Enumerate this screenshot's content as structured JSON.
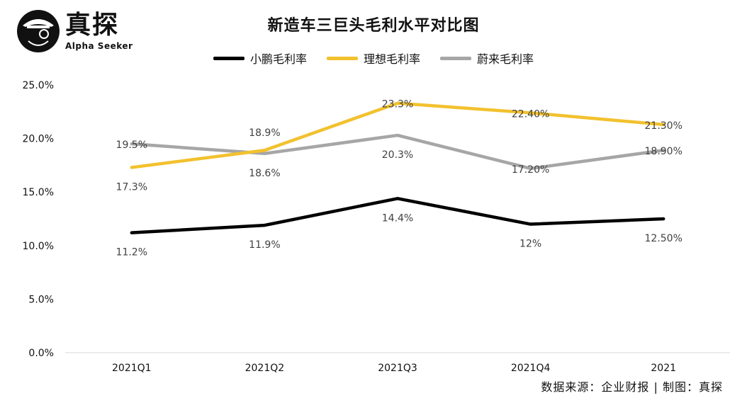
{
  "brand": {
    "name": "真探",
    "tagline": "Alpha Seeker"
  },
  "footer": {
    "source": "数据来源：企业财报 | 制图：真探"
  },
  "colors": {
    "xpeng": "#000000",
    "li": "#f2c12e",
    "nio": "#a6a6a6",
    "grid": "#d9d9d9"
  },
  "chart_data": {
    "type": "line",
    "title": "新造车三巨头毛利水平对比图",
    "categories": [
      "2021Q1",
      "2021Q2",
      "2021Q3",
      "2021Q4",
      "2021"
    ],
    "ylim": [
      0,
      25
    ],
    "yticks": [
      "0.0%",
      "5.0%",
      "10.0%",
      "15.0%",
      "20.0%",
      "25.0%"
    ],
    "ytick_values": [
      0,
      5,
      10,
      15,
      20,
      25
    ],
    "legend_position": "top-center",
    "grid": false,
    "series": [
      {
        "name": "小鹏毛利率",
        "color": "#000000",
        "values": [
          11.2,
          11.9,
          14.4,
          12.0,
          12.5
        ],
        "labels": [
          "11.2%",
          "11.9%",
          "14.4%",
          "12%",
          "12.50%"
        ],
        "label_side": [
          "below",
          "below",
          "below",
          "below",
          "below"
        ]
      },
      {
        "name": "理想毛利率",
        "color": "#f2c12e",
        "values": [
          17.3,
          18.9,
          23.3,
          22.4,
          21.3
        ],
        "labels": [
          "17.3%",
          "18.9%",
          "23.3%",
          "22.40%",
          "21.30%"
        ],
        "label_side": [
          "below",
          "above",
          "on",
          "on",
          "on"
        ]
      },
      {
        "name": "蔚来毛利率",
        "color": "#a6a6a6",
        "values": [
          19.5,
          18.6,
          20.3,
          17.2,
          18.9
        ],
        "labels": [
          "19.5%",
          "18.6%",
          "20.3%",
          "17.20%",
          "18.90%"
        ],
        "label_side": [
          "on",
          "below",
          "below",
          "on",
          "on"
        ]
      }
    ]
  }
}
